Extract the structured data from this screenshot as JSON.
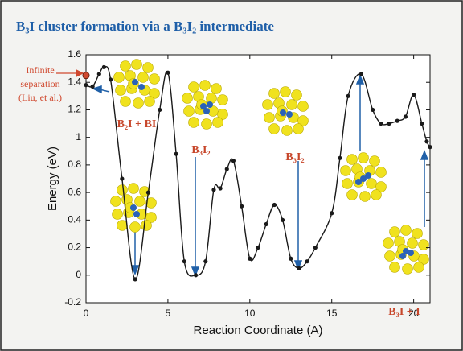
{
  "chart_data": {
    "type": "line",
    "title": "B₃I cluster formation via a B₃I₂ intermediate",
    "xlabel": "Reaction Coordinate (A)",
    "ylabel": "Energy (eV)",
    "x": [
      0,
      0.4,
      0.8,
      1.1,
      1.5,
      2.2,
      3.0,
      3.8,
      4.5,
      5.0,
      5.5,
      6.0,
      6.7,
      7.3,
      7.8,
      8.2,
      8.6,
      9.0,
      9.5,
      10.0,
      10.5,
      11.0,
      11.5,
      12.0,
      12.5,
      13.0,
      13.5,
      14.0,
      15.0,
      15.5,
      16.0,
      16.8,
      17.5,
      18.0,
      18.5,
      19.0,
      19.5,
      20.0,
      20.5,
      20.8,
      21.0
    ],
    "series": [
      {
        "color": "#1a1a1a",
        "values": [
          1.38,
          1.37,
          1.46,
          1.51,
          1.42,
          0.7,
          -0.03,
          0.6,
          1.2,
          1.47,
          0.88,
          0.1,
          0.0,
          0.1,
          0.62,
          0.63,
          0.77,
          0.83,
          0.5,
          0.12,
          0.2,
          0.37,
          0.51,
          0.4,
          0.12,
          0.05,
          0.1,
          0.2,
          0.45,
          0.85,
          1.3,
          1.46,
          1.2,
          1.1,
          1.1,
          1.12,
          1.15,
          1.31,
          1.1,
          0.97,
          0.93
        ]
      }
    ],
    "reference_point": {
      "x": 0,
      "y": 1.45,
      "color": "#d0492f",
      "label": [
        "Infinite",
        "separation",
        "(Liu, et al.)"
      ]
    },
    "labels": [
      "B₂I + BI",
      "B₃I₂",
      "B₃I₂",
      "B₃I + I"
    ],
    "xlim": [
      0,
      21
    ],
    "ylim": [
      -0.2,
      1.6
    ],
    "xticks": [
      0,
      5,
      10,
      15,
      20
    ],
    "yticks": [
      -0.2,
      0,
      0.2,
      0.4,
      0.6,
      0.8,
      1,
      1.2,
      1.4,
      1.6
    ]
  }
}
